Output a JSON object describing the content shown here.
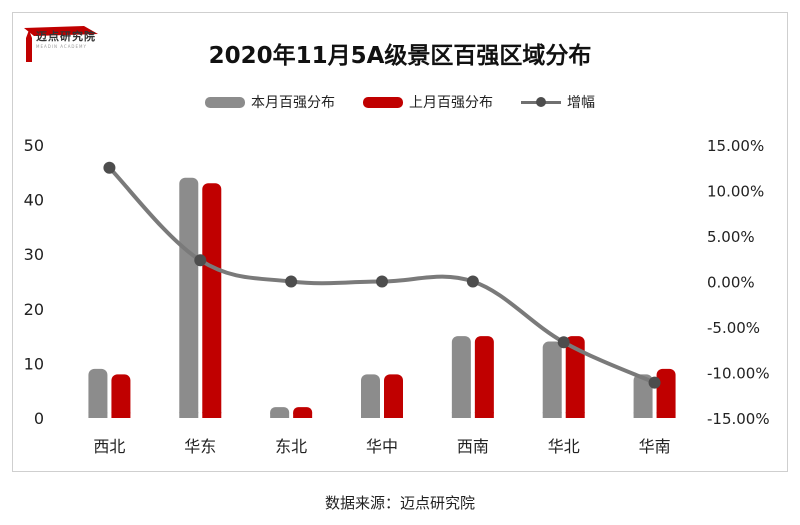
{
  "header": {
    "title": "2020年11月5A级景区百强区域分布",
    "logo_name": "迈点研究院",
    "logo_sub": "MEADIN ACADEMY"
  },
  "legend": [
    {
      "label": "本月百强分布",
      "color": "#8c8c8c"
    },
    {
      "label": "上月百强分布",
      "color": "#c00000"
    },
    {
      "label": "增幅",
      "color": "#707070"
    }
  ],
  "source": "数据来源：迈点研究院",
  "chart_data": {
    "type": "bar",
    "title": "2020年11月5A级景区百强区域分布",
    "categories": [
      "西北",
      "华东",
      "东北",
      "华中",
      "西南",
      "华北",
      "华南"
    ],
    "series": [
      {
        "name": "本月百强分布",
        "kind": "bar",
        "axis": "left",
        "color": "#8c8c8c",
        "values": [
          9,
          44,
          2,
          8,
          15,
          14,
          8
        ]
      },
      {
        "name": "上月百强分布",
        "kind": "bar",
        "axis": "left",
        "color": "#c00000",
        "values": [
          8,
          43,
          2,
          8,
          15,
          15,
          9
        ]
      },
      {
        "name": "增幅",
        "kind": "line",
        "axis": "right",
        "color": "#707070",
        "values": [
          0.125,
          0.0233,
          0.0,
          0.0,
          0.0,
          -0.0667,
          -0.1111
        ]
      }
    ],
    "left_axis": {
      "ylim": [
        0,
        50
      ],
      "ticks": [
        "0",
        "10",
        "20",
        "30",
        "40",
        "50"
      ]
    },
    "right_axis": {
      "ylim": [
        -0.15,
        0.15
      ],
      "ticks": [
        "-15.00%",
        "-10.00%",
        "-5.00%",
        "0.00%",
        "5.00%",
        "10.00%",
        "15.00%"
      ]
    },
    "legend_position": "top",
    "grid": false
  }
}
